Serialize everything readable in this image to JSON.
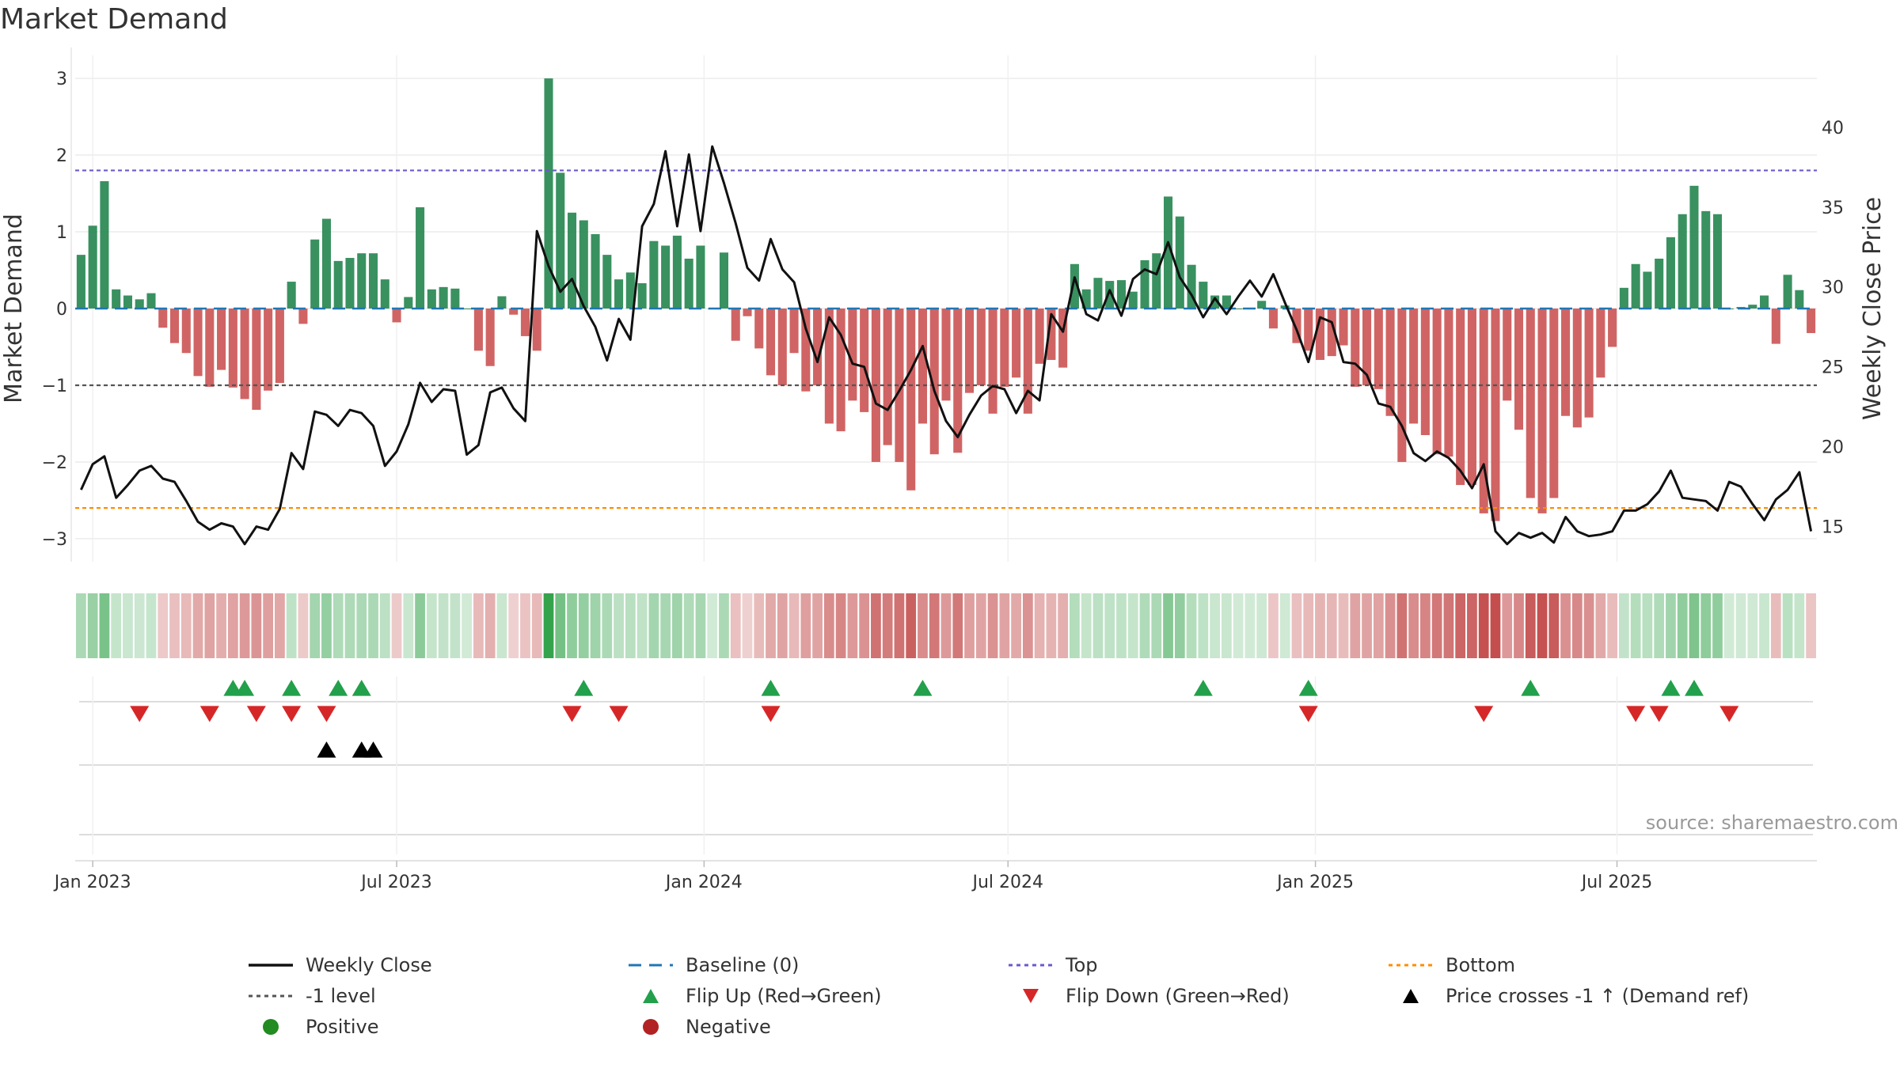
{
  "title": "Market Demand",
  "source": "source: sharemaestro.com",
  "colors": {
    "positive": "#2e8b57",
    "negative": "#cd5c5c",
    "price": "#111111",
    "top": "#6a5acd",
    "bottom": "#ff8c00",
    "minus1": "#555555",
    "baseline": "#1f77b4",
    "flip_up": "#22a04b",
    "flip_down": "#d62728",
    "cross": "#000000"
  },
  "chart_data": {
    "type": "bar",
    "title": "Market Demand",
    "xlabel": "",
    "ylabel": "Market Demand",
    "ylabel_right": "Weekly Close Price",
    "ylim": [
      -3.3,
      3.3
    ],
    "ylim_right": [
      12.8,
      44.5
    ],
    "yticks": [
      "3",
      "2",
      "1",
      "0",
      "−1",
      "−2",
      "−3"
    ],
    "yticks_right": [
      "40",
      "35",
      "30",
      "25",
      "20",
      "15"
    ],
    "ytick_values": [
      3,
      2,
      1,
      0,
      -1,
      -2,
      -3
    ],
    "ytick_right_values": [
      40,
      35,
      30,
      25,
      20,
      15
    ],
    "x_start_week": -1,
    "x_ticks": [
      {
        "label": "Jan 2023",
        "week": 0
      },
      {
        "label": "Jul 2023",
        "week": 26
      },
      {
        "label": "Jan 2024",
        "week": 52.3
      },
      {
        "label": "Jul 2024",
        "week": 78.3
      },
      {
        "label": "Jan 2025",
        "week": 104.6
      },
      {
        "label": "Jul 2025",
        "week": 130.4
      }
    ],
    "top_level": 1.8,
    "bottom_level": -2.6,
    "minus1_level": -1,
    "demand": [
      0.7,
      1.08,
      1.66,
      0.25,
      0.17,
      0.12,
      0.2,
      -0.25,
      -0.45,
      -0.58,
      -0.88,
      -1.02,
      -0.8,
      -1.03,
      -1.18,
      -1.32,
      -1.07,
      -0.97,
      0.35,
      -0.2,
      0.9,
      1.17,
      0.62,
      0.66,
      0.72,
      0.72,
      0.38,
      -0.18,
      0.15,
      1.32,
      0.25,
      0.28,
      0.26,
      0,
      -0.55,
      -0.75,
      0.16,
      -0.08,
      -0.36,
      -0.55,
      3.0,
      1.77,
      1.25,
      1.15,
      0.97,
      0.7,
      0.38,
      0.47,
      0.33,
      0.88,
      0.82,
      0.95,
      0.65,
      0.82,
      0,
      0.73,
      -0.42,
      -0.1,
      -0.52,
      -0.87,
      -1.0,
      -0.58,
      -1.08,
      -1.0,
      -1.5,
      -1.6,
      -1.2,
      -1.35,
      -2.0,
      -1.78,
      -2.0,
      -2.37,
      -1.5,
      -1.9,
      -1.2,
      -1.88,
      -1.1,
      -1.0,
      -1.37,
      -1.02,
      -0.9,
      -1.37,
      -0.72,
      -0.67,
      -0.77,
      0.58,
      0.25,
      0.4,
      0.36,
      0.37,
      0.22,
      0.63,
      0.72,
      1.46,
      1.2,
      0.57,
      0.35,
      0.17,
      0.17,
      0,
      0,
      0.1,
      -0.26,
      0.04,
      -0.45,
      -0.55,
      -0.67,
      -0.62,
      -0.48,
      -1.02,
      -1.0,
      -1.05,
      -1.4,
      -2.0,
      -1.5,
      -1.65,
      -1.9,
      -1.93,
      -2.3,
      -2.3,
      -2.67,
      -2.77,
      -1.2,
      -1.58,
      -2.47,
      -2.67,
      -2.47,
      -1.4,
      -1.55,
      -1.42,
      -0.9,
      -0.5,
      0.27,
      0.58,
      0.48,
      0.65,
      0.93,
      1.23,
      1.6,
      1.27,
      1.23,
      0,
      0.02,
      0.05,
      0.17,
      -0.46,
      0.44,
      0.24,
      -0.32
    ],
    "price": [
      17.3,
      18.9,
      19.4,
      16.8,
      17.6,
      18.5,
      18.8,
      18.0,
      17.8,
      16.6,
      15.3,
      14.8,
      15.2,
      15.0,
      13.9,
      15.0,
      14.8,
      16.1,
      19.6,
      18.6,
      22.2,
      22.0,
      21.3,
      22.3,
      22.1,
      21.3,
      18.8,
      19.7,
      21.4,
      24.0,
      22.8,
      23.6,
      23.5,
      19.5,
      20.1,
      23.4,
      23.7,
      22.4,
      21.6,
      33.5,
      31.3,
      29.7,
      30.5,
      28.8,
      27.5,
      25.4,
      28.0,
      26.7,
      33.8,
      35.2,
      38.5,
      33.8,
      38.3,
      33.5,
      38.8,
      36.5,
      34.0,
      31.2,
      30.4,
      33.0,
      31.1,
      30.3,
      27.4,
      25.3,
      28.1,
      27.0,
      25.2,
      25.0,
      22.7,
      22.3,
      23.5,
      24.8,
      26.3,
      23.5,
      21.6,
      20.6,
      22.0,
      23.2,
      23.8,
      23.6,
      22.1,
      23.5,
      22.9,
      28.3,
      27.2,
      30.6,
      28.3,
      27.9,
      29.8,
      28.2,
      30.5,
      31.1,
      30.8,
      32.8,
      30.6,
      29.5,
      28.1,
      29.3,
      28.3,
      29.4,
      30.4,
      29.4,
      30.8,
      29.0,
      27.3,
      25.3,
      28.1,
      27.8,
      25.3,
      25.2,
      24.5,
      22.7,
      22.5,
      21.3,
      19.6,
      19.1,
      19.7,
      19.3,
      18.5,
      17.4,
      18.9,
      14.7,
      13.9,
      14.6,
      14.3,
      14.6,
      14.0,
      15.6,
      14.7,
      14.4,
      14.5,
      14.7,
      16.0,
      16.0,
      16.4,
      17.2,
      18.5,
      16.8,
      16.7,
      16.6,
      16.0,
      17.8,
      17.5,
      16.4,
      15.4,
      16.7,
      17.3,
      18.4,
      14.7
    ],
    "flip_up_weeks": [
      12,
      13,
      17,
      21,
      23,
      42,
      58,
      71,
      95,
      104,
      123,
      135,
      137
    ],
    "flip_down_weeks": [
      4,
      10,
      14,
      17,
      20,
      41,
      45,
      58,
      104,
      119,
      132,
      134,
      140
    ],
    "price_cross_weeks": [
      20,
      23,
      24
    ]
  },
  "legend": [
    {
      "label": "Weekly Close",
      "symbol": "line-solid",
      "color": "#111111"
    },
    {
      "label": "Baseline (0)",
      "symbol": "line-dash",
      "color": "#1f77b4"
    },
    {
      "label": "Top",
      "symbol": "line-dot",
      "color": "#6a5acd"
    },
    {
      "label": "Bottom",
      "symbol": "line-dot",
      "color": "#ff8c00"
    },
    {
      "label": "-1 level",
      "symbol": "line-dot",
      "color": "#555555"
    },
    {
      "label": "Flip Up (Red→Green)",
      "symbol": "tri-up",
      "color": "#22a04b"
    },
    {
      "label": "Flip Down (Green→Red)",
      "symbol": "tri-down",
      "color": "#d62728"
    },
    {
      "label": "Price crosses -1 ↑ (Demand ref)",
      "symbol": "tri-up",
      "color": "#000000"
    },
    {
      "label": "Positive",
      "symbol": "circle",
      "color": "#228b22"
    },
    {
      "label": "Negative",
      "symbol": "circle",
      "color": "#b22222"
    }
  ]
}
